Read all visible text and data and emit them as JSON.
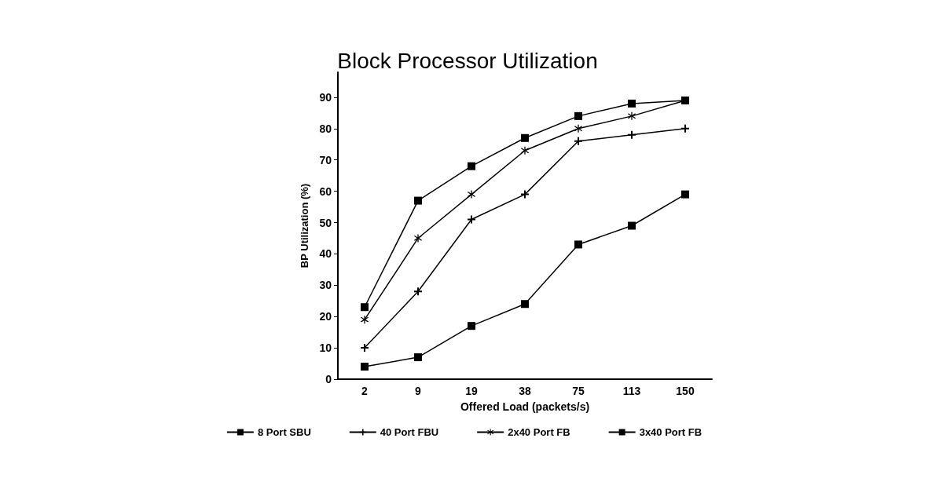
{
  "chart_data": {
    "type": "line",
    "title": "Block Processor Utilization",
    "xlabel": "Offered Load (packets/s)",
    "ylabel": "BP Utilization (%)",
    "categories": [
      "2",
      "9",
      "19",
      "38",
      "75",
      "113",
      "150"
    ],
    "series": [
      {
        "name": "8 Port SBU",
        "color": "#000000",
        "marker": "square",
        "values": [
          4,
          7,
          17,
          24,
          43,
          49,
          59
        ]
      },
      {
        "name": "40 Port FBU",
        "color": "#000000",
        "marker": "cross",
        "values": [
          10,
          28,
          51,
          59,
          76,
          78,
          80
        ]
      },
      {
        "name": "2x40 Port FB",
        "color": "#000000",
        "marker": "star",
        "values": [
          19,
          45,
          59,
          73,
          80,
          84,
          89
        ]
      },
      {
        "name": "3x40 Port FB",
        "color": "#000000",
        "marker": "square",
        "values": [
          23,
          57,
          68,
          77,
          84,
          88,
          89
        ]
      }
    ],
    "ylim": [
      0,
      98
    ],
    "yticks": [
      0,
      10,
      20,
      30,
      40,
      50,
      60,
      70,
      80,
      90
    ],
    "grid": false,
    "legend": "bottom",
    "line_style": "solid"
  }
}
